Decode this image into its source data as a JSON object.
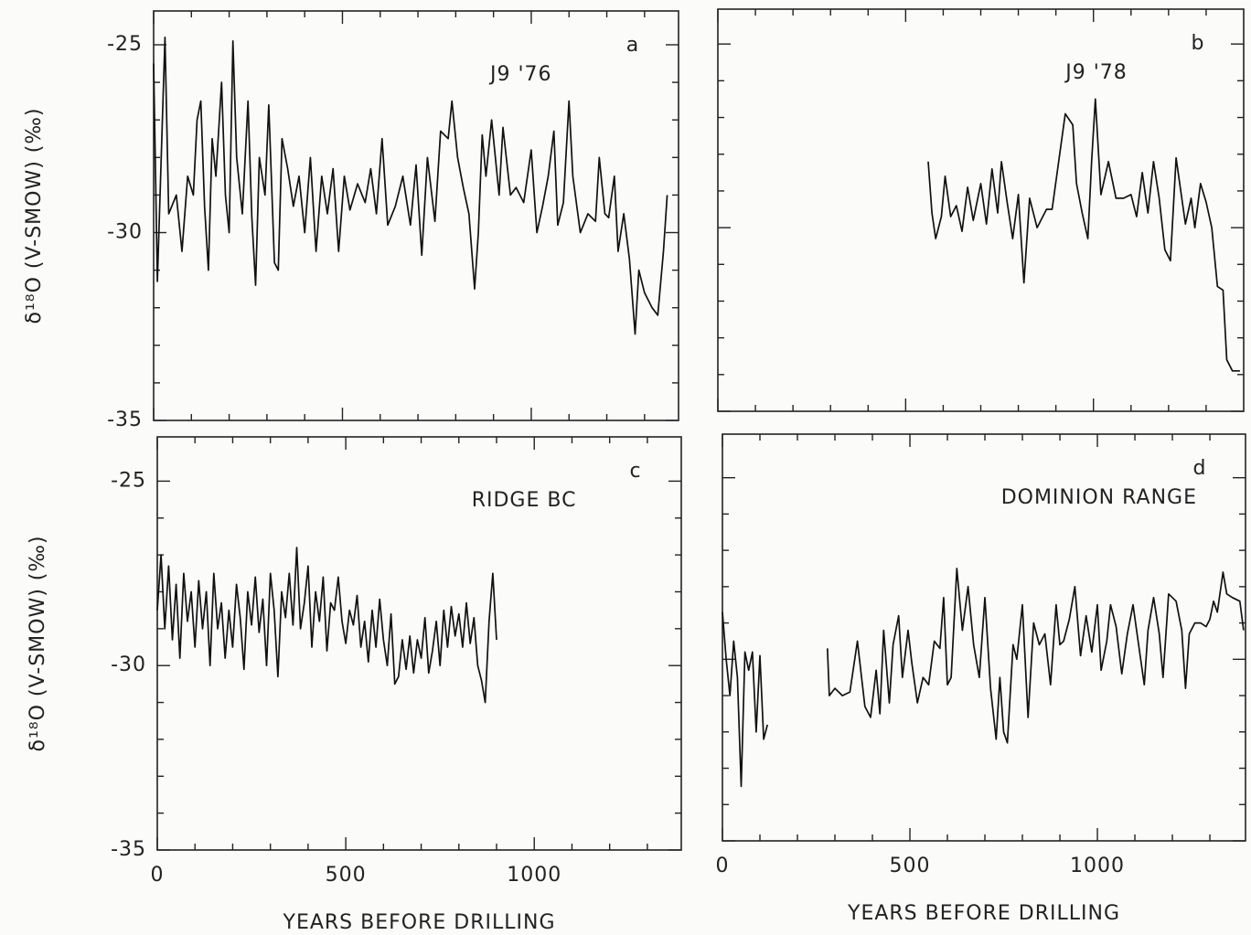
{
  "chart_data": [
    {
      "type": "line",
      "panel_label": "a",
      "title": "J9 '76",
      "ylabel": "δ¹⁸O (V-SMOW) (‰)",
      "xlim": [
        0,
        1390
      ],
      "ylim": [
        -35,
        -24.1
      ],
      "yticks": [
        -25,
        -30,
        -35
      ],
      "yminor": [
        -26,
        -27,
        -28,
        -29,
        -31,
        -32,
        -33,
        -34
      ],
      "xticks": [
        0,
        500,
        1000
      ],
      "xminor": [
        100,
        200,
        300,
        400,
        600,
        700,
        800,
        900,
        1100,
        1200,
        1300
      ],
      "ytick_labels": true,
      "xtick_labels": false,
      "color": "#111111",
      "x": [
        0,
        10,
        20,
        30,
        40,
        60,
        75,
        90,
        105,
        115,
        125,
        135,
        145,
        155,
        165,
        180,
        190,
        200,
        210,
        220,
        235,
        250,
        260,
        270,
        280,
        295,
        305,
        320,
        330,
        340,
        355,
        370,
        385,
        400,
        415,
        430,
        445,
        460,
        475,
        490,
        505,
        520,
        540,
        560,
        575,
        590,
        605,
        620,
        640,
        660,
        680,
        695,
        710,
        725,
        745,
        760,
        780,
        790,
        805,
        820,
        835,
        850,
        860,
        870,
        880,
        895,
        915,
        925,
        945,
        960,
        980,
        1000,
        1015,
        1030,
        1045,
        1060,
        1070,
        1085,
        1100,
        1110,
        1130,
        1150,
        1170,
        1180,
        1195,
        1205,
        1220,
        1230,
        1245,
        1260,
        1275,
        1285,
        1300,
        1320,
        1335,
        1350,
        1360
      ],
      "values": [
        -25.5,
        -31.3,
        -28,
        -24.8,
        -29.5,
        -29,
        -30.5,
        -28.5,
        -29,
        -27,
        -26.5,
        -29.3,
        -31,
        -27.5,
        -28.5,
        -26,
        -29,
        -30,
        -24.9,
        -28,
        -29.5,
        -26.5,
        -29.6,
        -31.4,
        -28,
        -29,
        -26.6,
        -30.8,
        -31,
        -27.5,
        -28.3,
        -29.3,
        -28.5,
        -30,
        -28,
        -30.5,
        -28.5,
        -29.5,
        -28.3,
        -30.5,
        -28.5,
        -29.4,
        -28.7,
        -29.2,
        -28.3,
        -29.5,
        -27.5,
        -29.8,
        -29.3,
        -28.5,
        -29.8,
        -28.2,
        -30.6,
        -28,
        -29.7,
        -27.3,
        -27.5,
        -26.5,
        -28,
        -28.8,
        -29.5,
        -31.5,
        -30,
        -27.4,
        -28.5,
        -27,
        -29,
        -27.2,
        -29,
        -28.8,
        -29.2,
        -27.8,
        -30,
        -29.3,
        -28.5,
        -27.3,
        -29.8,
        -29.2,
        -26.5,
        -28.5,
        -30,
        -29.5,
        -29.7,
        -28,
        -29.5,
        -29.6,
        -28.5,
        -30.5,
        -29.5,
        -30.7,
        -32.7,
        -31,
        -31.6,
        -32,
        -32.2,
        -30.5,
        -29
      ]
    },
    {
      "type": "line",
      "panel_label": "b",
      "title": "J9 '78",
      "xlim": [
        0,
        1400
      ],
      "ylim": [
        -35,
        -24.05
      ],
      "yticks": [
        -25,
        -30,
        -35
      ],
      "yminor": [
        -26,
        -27,
        -28,
        -29,
        -31,
        -32,
        -33,
        -34
      ],
      "xticks": [
        0,
        500,
        1000
      ],
      "xminor": [
        100,
        200,
        300,
        400,
        600,
        700,
        800,
        900,
        1100,
        1200,
        1300
      ],
      "ytick_labels": false,
      "xtick_labels": false,
      "color": "#111111",
      "x": [
        560,
        570,
        580,
        595,
        605,
        620,
        635,
        650,
        665,
        680,
        700,
        715,
        730,
        745,
        755,
        770,
        785,
        800,
        815,
        830,
        850,
        875,
        890,
        910,
        925,
        945,
        955,
        970,
        985,
        995,
        1005,
        1020,
        1040,
        1060,
        1080,
        1100,
        1115,
        1130,
        1145,
        1160,
        1175,
        1190,
        1205,
        1220,
        1245,
        1260,
        1270,
        1285,
        1300,
        1315,
        1330,
        1345,
        1355,
        1370,
        1390
      ],
      "values": [
        -28.2,
        -29.6,
        -30.3,
        -29.7,
        -28.6,
        -29.7,
        -29.4,
        -30.1,
        -28.9,
        -29.8,
        -28.8,
        -29.9,
        -28.4,
        -29.6,
        -28.2,
        -29.3,
        -30.3,
        -29.1,
        -31.5,
        -29.2,
        -30,
        -29.5,
        -29.5,
        -28,
        -26.9,
        -27.2,
        -28.8,
        -29.6,
        -30.3,
        -28.2,
        -26.5,
        -29.1,
        -28.2,
        -29.2,
        -29.2,
        -29.1,
        -29.7,
        -28.5,
        -29.6,
        -28.2,
        -29.2,
        -30.6,
        -30.9,
        -28.1,
        -29.9,
        -29.2,
        -30,
        -28.8,
        -29.3,
        -30,
        -31.6,
        -31.7,
        -33.6,
        -33.9,
        -33.9
      ]
    },
    {
      "type": "line",
      "panel_label": "c",
      "title": "RIDGE BC",
      "ylabel": "δ¹⁸O (V-SMOW) (‰)",
      "xlabel": "YEARS BEFORE DRILLING",
      "xlim": [
        0,
        1390
      ],
      "ylim": [
        -35,
        -23.8
      ],
      "yticks": [
        -25,
        -30,
        -35
      ],
      "yminor": [
        -26,
        -27,
        -28,
        -29,
        -31,
        -32,
        -33,
        -34
      ],
      "xticks": [
        0,
        500,
        1000
      ],
      "xminor": [
        100,
        200,
        300,
        400,
        600,
        700,
        800,
        900,
        1100,
        1200,
        1300
      ],
      "ytick_labels": true,
      "xtick_labels": true,
      "color": "#111111",
      "x": [
        0,
        10,
        20,
        30,
        40,
        50,
        60,
        70,
        80,
        90,
        100,
        110,
        120,
        130,
        140,
        150,
        160,
        170,
        180,
        190,
        200,
        210,
        220,
        230,
        240,
        250,
        260,
        270,
        280,
        290,
        300,
        310,
        320,
        330,
        340,
        350,
        360,
        370,
        380,
        390,
        400,
        410,
        420,
        430,
        440,
        450,
        460,
        470,
        480,
        490,
        500,
        510,
        520,
        530,
        540,
        550,
        560,
        570,
        580,
        590,
        600,
        610,
        620,
        630,
        640,
        650,
        660,
        670,
        680,
        690,
        700,
        710,
        720,
        730,
        740,
        750,
        760,
        770,
        780,
        790,
        800,
        810,
        820,
        830,
        840,
        850,
        860,
        870,
        880,
        890,
        900
      ],
      "values": [
        -28.5,
        -27,
        -29,
        -27.3,
        -29.3,
        -27.8,
        -29.8,
        -27.5,
        -28.8,
        -28,
        -29.5,
        -27.7,
        -29,
        -28,
        -30,
        -27.5,
        -29,
        -28.3,
        -29.8,
        -28.5,
        -29.5,
        -27.8,
        -28.7,
        -30.1,
        -28,
        -28.9,
        -27.6,
        -29.1,
        -28.2,
        -30,
        -27.5,
        -28.5,
        -30.3,
        -28,
        -28.7,
        -27.5,
        -28.9,
        -26.8,
        -29,
        -28.3,
        -27.3,
        -29.5,
        -28,
        -28.8,
        -27.6,
        -29.6,
        -28.3,
        -28.5,
        -27.6,
        -28.8,
        -29.4,
        -28.5,
        -28.9,
        -28.1,
        -29.5,
        -28.8,
        -29.9,
        -28.5,
        -29.5,
        -28.2,
        -29.3,
        -30,
        -28.6,
        -30.5,
        -30.3,
        -29.3,
        -30.1,
        -29.2,
        -30.2,
        -29.3,
        -29.8,
        -28.7,
        -30.2,
        -29.6,
        -28.8,
        -30,
        -28.5,
        -29.5,
        -28.4,
        -29.2,
        -28.6,
        -29.5,
        -28.3,
        -29.4,
        -28.7,
        -30,
        -30.4,
        -31,
        -28.8,
        -27.5,
        -29.3
      ]
    },
    {
      "type": "line",
      "panel_label": "d",
      "title": "DOMINION RANGE",
      "xlabel": "YEARS BEFORE DRILLING",
      "xlim": [
        0,
        1395
      ],
      "ylim": [
        -35,
        -23.8
      ],
      "yticks": [
        -25,
        -30,
        -35
      ],
      "yminor": [
        -26,
        -27,
        -28,
        -29,
        -31,
        -32,
        -33,
        -34
      ],
      "xticks": [
        0,
        500,
        1000
      ],
      "xminor": [
        100,
        200,
        300,
        400,
        600,
        700,
        800,
        900,
        1100,
        1200,
        1300
      ],
      "ytick_labels": false,
      "xtick_labels": true,
      "color": "#111111",
      "x": [
        0,
        10,
        20,
        30,
        40,
        50,
        60,
        70,
        80,
        90,
        100,
        110,
        120,
        200,
        280,
        285,
        300,
        320,
        340,
        360,
        380,
        395,
        410,
        420,
        430,
        445,
        455,
        470,
        480,
        495,
        505,
        520,
        535,
        550,
        565,
        580,
        590,
        600,
        610,
        625,
        640,
        655,
        670,
        685,
        700,
        715,
        730,
        740,
        750,
        760,
        775,
        785,
        800,
        815,
        830,
        845,
        860,
        875,
        890,
        900,
        910,
        925,
        940,
        955,
        970,
        985,
        1000,
        1010,
        1025,
        1035,
        1050,
        1065,
        1080,
        1095,
        1110,
        1125,
        1135,
        1150,
        1165,
        1175,
        1190,
        1210,
        1225,
        1235,
        1245,
        1260,
        1275,
        1290,
        1300,
        1310,
        1320,
        1335,
        1345,
        1360,
        1380,
        1390
      ],
      "values": [
        -28.7,
        -30,
        -31,
        -29.5,
        -30.5,
        -33.5,
        -29.8,
        -30.3,
        -29.8,
        -32,
        -29.9,
        -32.2,
        -31.8,
        null,
        -29.7,
        -31,
        -30.8,
        -31,
        -30.9,
        -29.5,
        -31.3,
        -31.6,
        -30.3,
        -31.5,
        -29.2,
        -31.2,
        -29.6,
        -28.8,
        -30.5,
        -29.2,
        -30.1,
        -31.2,
        -30.5,
        -30.7,
        -29.5,
        -29.7,
        -28.3,
        -30.7,
        -30.5,
        -27.5,
        -29.2,
        -28,
        -29.6,
        -30.5,
        -28.3,
        -30.8,
        -32.2,
        -30.5,
        -32,
        -32.3,
        -29.6,
        -30,
        -28.5,
        -31.6,
        -29,
        -29.6,
        -29.3,
        -30.7,
        -28.5,
        -29.6,
        -29.5,
        -28.9,
        -28,
        -29.9,
        -28.8,
        -29.8,
        -28.5,
        -30.3,
        -29.5,
        -28.5,
        -29.1,
        -30.4,
        -29.3,
        -28.5,
        -29.6,
        -30.7,
        -29.2,
        -28.3,
        -29.3,
        -30.5,
        -28.2,
        -28.4,
        -29.2,
        -30.8,
        -29.3,
        -29,
        -29,
        -29.1,
        -28.9,
        -28.4,
        -28.7,
        -27.6,
        -28.2,
        -28.3,
        -28.4,
        -29.2
      ]
    }
  ]
}
